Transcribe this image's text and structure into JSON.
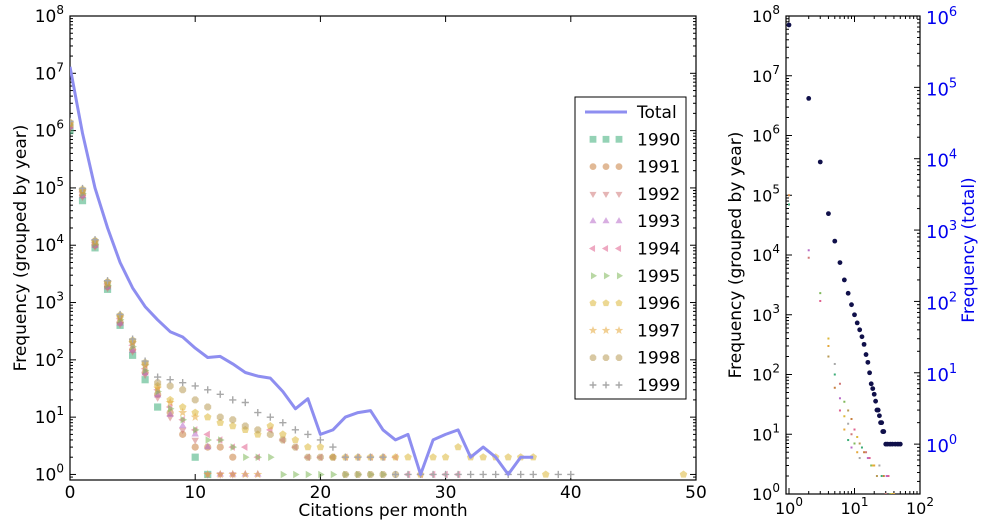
{
  "chart_data": [
    {
      "type": "line",
      "xlabel": "Citations per month",
      "ylabel": "Frequency (grouped by year)",
      "xlim": [
        0,
        50
      ],
      "ylim": [
        0.8,
        100000000
      ],
      "yscale": "log",
      "xticks": [
        0,
        10,
        20,
        30,
        40,
        50
      ],
      "yticks": [
        1,
        10,
        100,
        1000,
        10000,
        100000,
        1000000,
        10000000,
        100000000
      ],
      "ytick_labels": [
        {
          "base": "10",
          "exp": "0"
        },
        {
          "base": "10",
          "exp": "1"
        },
        {
          "base": "10",
          "exp": "2"
        },
        {
          "base": "10",
          "exp": "3"
        },
        {
          "base": "10",
          "exp": "4"
        },
        {
          "base": "10",
          "exp": "5"
        },
        {
          "base": "10",
          "exp": "6"
        },
        {
          "base": "10",
          "exp": "7"
        },
        {
          "base": "10",
          "exp": "8"
        }
      ],
      "grid": false,
      "legend": "right",
      "total": {
        "name": "Total",
        "color": "#8e8ef0",
        "x": [
          0,
          1,
          2,
          3,
          4,
          5,
          6,
          7,
          8,
          9,
          10,
          11,
          12,
          13,
          14,
          15,
          16,
          17,
          18,
          19,
          20,
          21,
          22,
          23,
          24,
          25,
          26,
          27,
          28,
          29,
          30,
          31,
          32,
          33,
          34,
          35,
          36,
          37
        ],
        "values": [
          13000000,
          900000,
          100000,
          20000,
          5000,
          1800,
          850,
          500,
          310,
          250,
          160,
          110,
          115,
          85,
          60,
          52,
          48,
          28,
          14,
          21,
          5,
          6,
          10,
          12,
          13,
          6,
          4,
          5,
          1,
          4,
          5,
          6,
          2,
          3,
          2,
          1,
          2,
          2
        ]
      },
      "series": [
        {
          "name": "1990",
          "marker": "square",
          "color": "#3dad78",
          "x": [
            0,
            1,
            2,
            3,
            4,
            5,
            6,
            7,
            10,
            11
          ],
          "values": [
            1000000,
            60000,
            9000,
            1700,
            400,
            120,
            45,
            15,
            2,
            1
          ]
        },
        {
          "name": "1991",
          "marker": "circle",
          "color": "#c88040",
          "x": [
            0,
            1,
            2,
            3,
            4,
            5,
            6,
            7,
            8,
            9,
            10,
            11,
            12,
            13
          ],
          "values": [
            1200000,
            75000,
            10000,
            1900,
            450,
            150,
            60,
            25,
            12,
            5,
            3,
            3,
            3,
            2
          ]
        },
        {
          "name": "1992",
          "marker": "triangle-down",
          "color": "#d07878",
          "x": [
            0,
            1,
            2,
            3,
            4,
            5,
            6,
            7,
            8,
            9,
            10,
            11,
            12,
            13
          ],
          "values": [
            1100000,
            70000,
            9500,
            1800,
            420,
            140,
            55,
            22,
            10,
            6,
            4,
            1,
            1,
            1
          ]
        },
        {
          "name": "1993",
          "marker": "triangle-up",
          "color": "#b86cc8",
          "x": [
            0,
            1,
            2,
            3,
            4,
            5,
            6,
            7,
            8,
            9,
            10,
            11,
            12,
            13,
            14,
            15
          ],
          "values": [
            1150000,
            72000,
            9800,
            1850,
            430,
            145,
            58,
            24,
            11,
            7,
            5,
            3,
            1,
            1,
            1,
            1
          ]
        },
        {
          "name": "1994",
          "marker": "triangle-left",
          "color": "#e0608e",
          "x": [
            0,
            1,
            2,
            3,
            4,
            5,
            6,
            7,
            8,
            9,
            10,
            11,
            12,
            13,
            14,
            15,
            16,
            17,
            18,
            19,
            20,
            21,
            22,
            23,
            24,
            25,
            26,
            27,
            28,
            29,
            30,
            31
          ],
          "values": [
            1300000,
            85000,
            11000,
            2100,
            520,
            180,
            70,
            30,
            15,
            9,
            6,
            5,
            4,
            3,
            3,
            2,
            6,
            4,
            3,
            2,
            2,
            2,
            2,
            2,
            2,
            2,
            2,
            1,
            1,
            1,
            1,
            1
          ]
        },
        {
          "name": "1995",
          "marker": "triangle-right",
          "color": "#7fb85a",
          "x": [
            0,
            1,
            2,
            3,
            4,
            5,
            6,
            7,
            8,
            9,
            10,
            11,
            12,
            13,
            14,
            15,
            16,
            17,
            18,
            19,
            20,
            21,
            22,
            23,
            24,
            25
          ],
          "values": [
            1250000,
            80000,
            10500,
            2000,
            500,
            170,
            65,
            28,
            14,
            9,
            6,
            4,
            4,
            3,
            2,
            2,
            2,
            1,
            1,
            1,
            1,
            1,
            1,
            1,
            1,
            1
          ]
        },
        {
          "name": "1996",
          "marker": "pentagon",
          "color": "#dcb83a",
          "x": [
            0,
            1,
            2,
            3,
            4,
            5,
            6,
            7,
            8,
            9,
            10,
            11,
            12,
            13,
            14,
            15,
            16,
            17,
            18,
            19,
            20,
            21,
            22,
            23,
            24,
            25,
            26,
            27,
            28,
            29,
            30,
            31,
            32,
            33,
            34,
            35,
            36,
            37,
            38,
            49
          ],
          "values": [
            1400000,
            95000,
            12000,
            2300,
            600,
            220,
            90,
            35,
            20,
            15,
            12,
            10,
            8,
            7,
            6,
            5,
            7,
            5,
            4,
            3,
            3,
            2,
            2,
            2,
            2,
            2,
            2,
            2,
            1,
            2,
            2,
            3,
            2,
            2,
            2,
            2,
            2,
            2,
            1,
            1
          ]
        },
        {
          "name": "1997",
          "marker": "star",
          "color": "#e5a83a",
          "x": [
            0,
            1,
            2,
            3,
            4,
            5,
            6,
            7,
            8,
            9,
            10,
            11,
            12,
            13,
            14,
            15
          ],
          "values": [
            1300000,
            88000,
            11500,
            2200,
            560,
            200,
            80,
            32,
            18,
            12,
            10,
            1,
            1,
            1,
            1,
            1
          ]
        },
        {
          "name": "1998",
          "marker": "octagon",
          "color": "#b89a55",
          "x": [
            0,
            1,
            2,
            3,
            4,
            5,
            6,
            7,
            8,
            9,
            10,
            11,
            12,
            13,
            14,
            15,
            16,
            17,
            18,
            19,
            20,
            21,
            22,
            23,
            24,
            25,
            26
          ],
          "values": [
            1350000,
            90000,
            11800,
            2250,
            580,
            210,
            85,
            40,
            35,
            30,
            20,
            15,
            10,
            9,
            7,
            6,
            5,
            4,
            3,
            2,
            2,
            2,
            1,
            1,
            1,
            1,
            1
          ]
        },
        {
          "name": "1999",
          "marker": "plus",
          "color": "#a8a8a8",
          "x": [
            0,
            1,
            2,
            3,
            4,
            5,
            6,
            7,
            8,
            9,
            10,
            11,
            12,
            13,
            14,
            15,
            16,
            17,
            18,
            19,
            20,
            21,
            22,
            23,
            24,
            25,
            26,
            27,
            28,
            29,
            30,
            31,
            32,
            33,
            34,
            35,
            36,
            37,
            39,
            40
          ],
          "values": [
            1450000,
            98000,
            12500,
            2400,
            620,
            230,
            95,
            50,
            45,
            40,
            35,
            30,
            25,
            20,
            18,
            12,
            10,
            8,
            6,
            5,
            4,
            3,
            2,
            2,
            2,
            2,
            1,
            1,
            1,
            1,
            1,
            1,
            1,
            1,
            1,
            1,
            1,
            1,
            1,
            1
          ]
        }
      ]
    },
    {
      "type": "scatter",
      "xscale": "log",
      "yscale": "log",
      "xlim": [
        0.9,
        100
      ],
      "ylim": [
        1,
        100000000
      ],
      "y2lim": [
        0.2,
        1000000
      ],
      "ylabel": "Frequency (grouped by year)",
      "y2label": "Frequency (total)",
      "y2_color": "#0000ee",
      "xtick_labels": [
        {
          "base": "10",
          "exp": "0",
          "v": 1
        },
        {
          "base": "10",
          "exp": "1",
          "v": 10
        },
        {
          "base": "10",
          "exp": "2",
          "v": 100
        }
      ],
      "ytick_labels": [
        {
          "base": "10",
          "exp": "0",
          "v": 1
        },
        {
          "base": "10",
          "exp": "1",
          "v": 10
        },
        {
          "base": "10",
          "exp": "2",
          "v": 100
        },
        {
          "base": "10",
          "exp": "3",
          "v": 1000
        },
        {
          "base": "10",
          "exp": "4",
          "v": 10000
        },
        {
          "base": "10",
          "exp": "5",
          "v": 100000
        },
        {
          "base": "10",
          "exp": "6",
          "v": 1000000
        },
        {
          "base": "10",
          "exp": "7",
          "v": 10000000
        },
        {
          "base": "10",
          "exp": "8",
          "v": 100000000
        }
      ],
      "y2tick_labels": [
        {
          "base": "10",
          "exp": "0",
          "v": 1
        },
        {
          "base": "10",
          "exp": "1",
          "v": 10
        },
        {
          "base": "10",
          "exp": "2",
          "v": 100
        },
        {
          "base": "10",
          "exp": "3",
          "v": 1000
        },
        {
          "base": "10",
          "exp": "4",
          "v": 10000
        },
        {
          "base": "10",
          "exp": "5",
          "v": 100000
        },
        {
          "base": "10",
          "exp": "6",
          "v": 1000000
        }
      ],
      "total": {
        "color": "#10104a",
        "x": [
          1,
          2,
          3,
          4,
          5,
          6,
          7,
          8,
          9,
          10,
          11,
          12,
          13,
          14,
          15,
          16,
          17,
          18,
          19,
          20,
          21,
          22,
          23,
          24,
          25,
          26,
          27,
          28,
          30,
          32,
          35,
          38,
          42,
          46,
          50
        ],
        "values": [
          750000,
          70000,
          9000,
          1700,
          700,
          350,
          200,
          130,
          90,
          65,
          50,
          40,
          32,
          25,
          18,
          14,
          10,
          7,
          6,
          5,
          4,
          3,
          3,
          2.5,
          2,
          2,
          1.5,
          1.5,
          1,
          1,
          1,
          1,
          1,
          1,
          1
        ]
      },
      "year_points": {
        "x": [
          1,
          1,
          2,
          2,
          3,
          3,
          4,
          4,
          4,
          5,
          5,
          5,
          6,
          6,
          6,
          7,
          7,
          7,
          8,
          8,
          8,
          9,
          9,
          9,
          10,
          10,
          11,
          11,
          12,
          12,
          13,
          14,
          15,
          16,
          17,
          18,
          19,
          20,
          22,
          24,
          26,
          28,
          30,
          31,
          33,
          35,
          37,
          40
        ],
        "values": [
          70000,
          100000,
          9000,
          12000,
          1700,
          2300,
          400,
          300,
          200,
          150,
          100,
          60,
          70,
          40,
          25,
          35,
          20,
          12,
          25,
          15,
          8,
          18,
          10,
          6,
          12,
          7,
          9,
          5,
          7,
          4,
          6,
          5,
          5,
          4,
          4,
          3,
          3,
          3,
          2,
          3,
          2,
          2,
          1,
          2,
          2,
          1,
          1,
          1
        ]
      }
    }
  ]
}
